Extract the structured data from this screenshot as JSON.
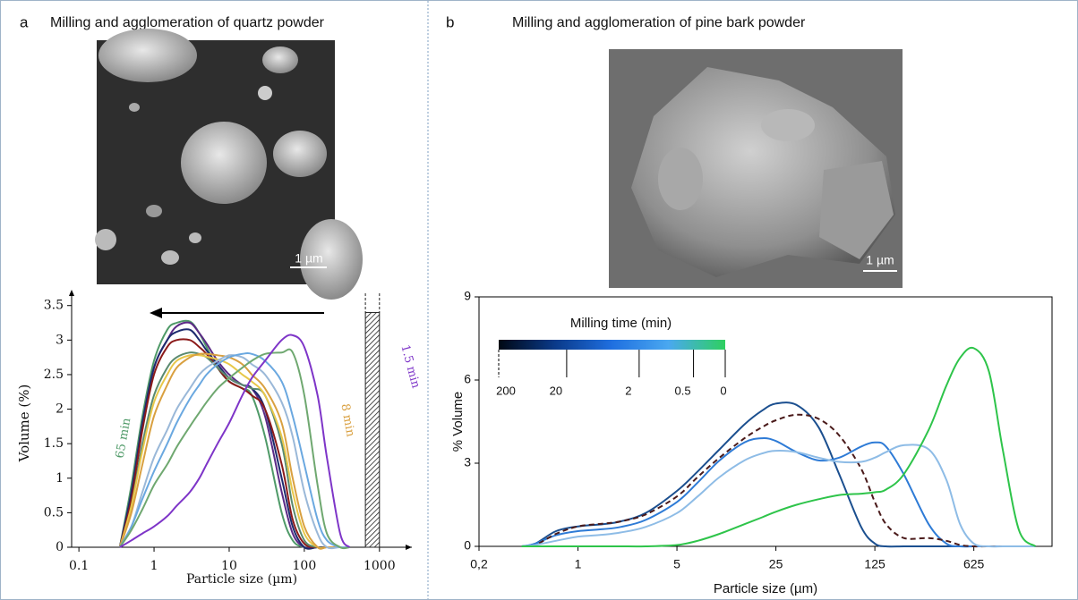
{
  "panels": [
    {
      "label": "a",
      "title": "Milling and agglomeration of quartz powder",
      "scale_bar": "1 µm"
    },
    {
      "label": "b",
      "title": "Milling and agglomeration of pine bark powder",
      "scale_bar": "1 µm"
    }
  ],
  "chart_data": [
    {
      "type": "line",
      "x_label": "Particle size (µm)",
      "y_label": "Volume (%)",
      "xscale": "log",
      "xlim": [
        0.08,
        2700
      ],
      "xticks": [
        0.1,
        1,
        10,
        100,
        1000
      ],
      "ylim": [
        0,
        3.6
      ],
      "yticks": [
        0,
        0.5,
        1,
        1.5,
        2,
        2.5,
        3,
        3.5
      ],
      "x": [
        0.35,
        0.5,
        0.7,
        1,
        1.5,
        2,
        3,
        4,
        5,
        7,
        10,
        15,
        20,
        30,
        50,
        70,
        100,
        150,
        200,
        300,
        400
      ],
      "series": [
        {
          "color": "#4f9a68",
          "values": [
            0,
            0.9,
            1.9,
            2.7,
            3.15,
            3.25,
            3.27,
            3.1,
            2.9,
            2.6,
            2.4,
            2.3,
            2.2,
            1.6,
            0.5,
            0.1,
            0,
            0,
            0,
            0,
            0
          ]
        },
        {
          "color": "#5b2a86",
          "values": [
            0,
            0.8,
            1.8,
            2.6,
            3.0,
            3.2,
            3.25,
            3.1,
            2.95,
            2.7,
            2.5,
            2.35,
            2.3,
            1.9,
            0.8,
            0.2,
            0,
            0,
            0,
            0,
            0
          ]
        },
        {
          "color": "#1d2b6e",
          "values": [
            0,
            0.8,
            1.8,
            2.6,
            3.0,
            3.12,
            3.15,
            3.0,
            2.85,
            2.65,
            2.45,
            2.35,
            2.3,
            2.0,
            1.0,
            0.3,
            0,
            0,
            0,
            0,
            0
          ]
        },
        {
          "color": "#8b1a1a",
          "values": [
            0,
            0.7,
            1.7,
            2.5,
            2.9,
            3.0,
            3.0,
            2.9,
            2.8,
            2.6,
            2.4,
            2.3,
            2.2,
            2.0,
            1.2,
            0.4,
            0.05,
            0,
            0,
            0,
            0
          ]
        },
        {
          "color": "#5a8a6f",
          "values": [
            0,
            0.6,
            1.5,
            2.2,
            2.6,
            2.75,
            2.82,
            2.8,
            2.75,
            2.6,
            2.45,
            2.35,
            2.3,
            2.2,
            1.5,
            0.6,
            0.1,
            0,
            0,
            0,
            0
          ]
        },
        {
          "color": "#e8c84a",
          "values": [
            0,
            0.6,
            1.4,
            2.1,
            2.5,
            2.7,
            2.78,
            2.78,
            2.76,
            2.72,
            2.65,
            2.5,
            2.4,
            2.2,
            1.6,
            0.8,
            0.2,
            0,
            0,
            0,
            0
          ]
        },
        {
          "color": "#d9a040",
          "values": [
            0,
            0.5,
            1.2,
            1.9,
            2.35,
            2.6,
            2.75,
            2.8,
            2.8,
            2.78,
            2.75,
            2.65,
            2.5,
            2.3,
            1.8,
            1.0,
            0.3,
            0,
            0,
            0,
            0
          ]
        },
        {
          "color": "#9ab8d8",
          "values": [
            0,
            0.3,
            0.8,
            1.3,
            1.7,
            2.0,
            2.3,
            2.5,
            2.6,
            2.7,
            2.78,
            2.75,
            2.65,
            2.5,
            2.1,
            1.6,
            0.8,
            0.2,
            0,
            0,
            0
          ]
        },
        {
          "color": "#6aa8e0",
          "values": [
            0,
            0.3,
            0.7,
            1.1,
            1.5,
            1.8,
            2.15,
            2.35,
            2.5,
            2.65,
            2.75,
            2.8,
            2.8,
            2.7,
            2.4,
            1.9,
            1.2,
            0.4,
            0.1,
            0,
            0
          ]
        },
        {
          "color": "#6fa870",
          "values": [
            0,
            0.25,
            0.55,
            0.9,
            1.2,
            1.45,
            1.75,
            1.95,
            2.1,
            2.3,
            2.45,
            2.6,
            2.7,
            2.8,
            2.82,
            2.82,
            2.2,
            0.9,
            0.2,
            0,
            0
          ]
        },
        {
          "color": "#7e35c8",
          "values": [
            0,
            0.1,
            0.2,
            0.3,
            0.45,
            0.6,
            0.8,
            1.0,
            1.2,
            1.5,
            1.8,
            2.2,
            2.45,
            2.7,
            3.0,
            3.07,
            2.9,
            2.2,
            1.3,
            0.2,
            0
          ]
        }
      ],
      "initial_distribution": {
        "x_range": [
          650,
          1000
        ],
        "value": 3.4
      },
      "annotations": [
        {
          "text": "65 min",
          "color": "#4f9a68"
        },
        {
          "text": "8 min",
          "color": "#d9a040"
        },
        {
          "text": "1.5 min",
          "color": "#7e35c8"
        }
      ]
    },
    {
      "type": "line",
      "x_label": "Particle size (µm)",
      "y_label": "% Volume",
      "xscale": "log",
      "xlim": [
        0.2,
        2230
      ],
      "xticks": [
        {
          "value": 0.2,
          "label": "0,2"
        },
        1,
        5,
        25,
        125,
        625
      ],
      "ylim": [
        0,
        9
      ],
      "yticks": [
        0,
        3,
        6,
        9
      ],
      "x": [
        0.4,
        0.5,
        0.7,
        1,
        1.5,
        2,
        3,
        5,
        7,
        10,
        15,
        20,
        25,
        35,
        50,
        70,
        100,
        125,
        150,
        200,
        300,
        400,
        500,
        625,
        800,
        1000,
        1300,
        1700
      ],
      "series": [
        {
          "color": "#1b4f8f",
          "values": [
            0,
            0.1,
            0.55,
            0.72,
            0.8,
            0.9,
            1.2,
            2.0,
            2.7,
            3.5,
            4.4,
            4.9,
            5.15,
            5.1,
            4.3,
            2.6,
            0.7,
            0.1,
            0,
            0,
            0,
            0,
            0,
            0,
            0,
            0,
            0,
            0
          ]
        },
        {
          "color": "#2e7bd6",
          "values": [
            0,
            0.1,
            0.4,
            0.55,
            0.62,
            0.7,
            0.95,
            1.6,
            2.3,
            3.1,
            3.75,
            3.9,
            3.8,
            3.4,
            3.1,
            3.2,
            3.6,
            3.75,
            3.6,
            2.6,
            0.8,
            0.1,
            0,
            0,
            0,
            0,
            0,
            0
          ]
        },
        {
          "color": "#4a1a1a",
          "dashed": true,
          "values": [
            0,
            0.05,
            0.45,
            0.72,
            0.82,
            0.9,
            1.15,
            1.8,
            2.5,
            3.2,
            3.9,
            4.3,
            4.55,
            4.75,
            4.6,
            4.0,
            2.8,
            1.6,
            0.8,
            0.3,
            0.3,
            0.2,
            0.05,
            0,
            0,
            0,
            0,
            0
          ]
        },
        {
          "color": "#8ebce6",
          "values": [
            0,
            0.05,
            0.2,
            0.35,
            0.42,
            0.5,
            0.7,
            1.2,
            1.8,
            2.5,
            3.1,
            3.35,
            3.45,
            3.4,
            3.2,
            3.05,
            3.05,
            3.2,
            3.4,
            3.65,
            3.5,
            2.4,
            0.8,
            0.1,
            0,
            0,
            0,
            0
          ]
        },
        {
          "color": "#2ec44a",
          "values": [
            0,
            0,
            0,
            0,
            0,
            0,
            0,
            0.05,
            0.2,
            0.45,
            0.8,
            1.05,
            1.25,
            1.5,
            1.7,
            1.85,
            1.9,
            1.95,
            2.05,
            2.6,
            4.2,
            5.8,
            6.8,
            7.15,
            6.3,
            3.5,
            0.6,
            0
          ]
        }
      ],
      "colorbar": {
        "title": "Milling time (min)",
        "ticks": [
          200,
          20,
          2,
          0.5,
          0
        ],
        "colors": [
          "#000814",
          "#0a3a8a",
          "#1f6fe0",
          "#4aa8f0",
          "#2ed060"
        ]
      }
    }
  ]
}
